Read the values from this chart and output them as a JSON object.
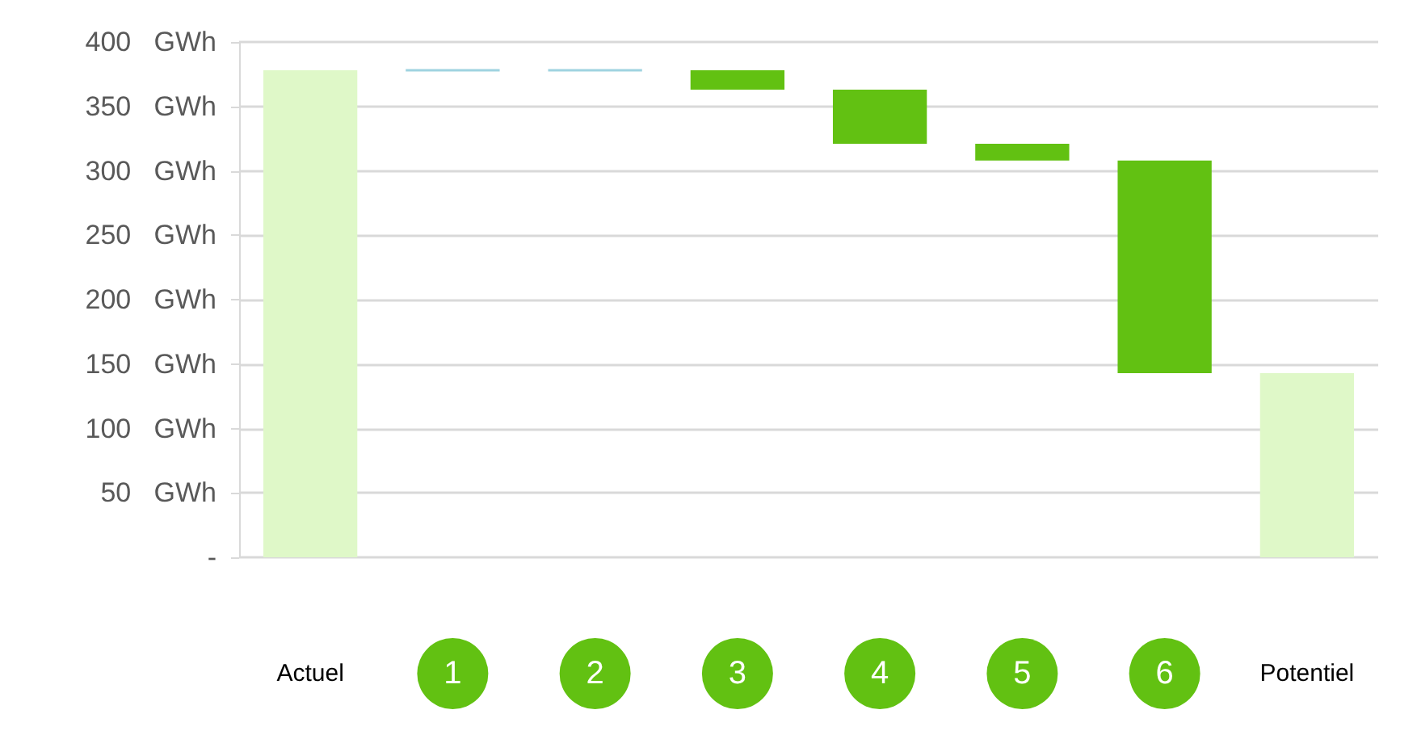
{
  "chart_data": {
    "type": "bar",
    "categories": [
      "Actuel",
      "1",
      "2",
      "3",
      "4",
      "5",
      "6",
      "Potentiel"
    ],
    "base": [
      0,
      378,
      378,
      378,
      363,
      321,
      308,
      0
    ],
    "values": [
      378,
      0,
      0,
      -15,
      -42,
      -13,
      -165,
      143
    ],
    "colors": [
      "#dff8c8",
      "#9fd3e0",
      "#9fd3e0",
      "#62c112",
      "#62c112",
      "#62c112",
      "#62c112",
      "#dff8c8"
    ],
    "ylim": [
      0,
      400
    ],
    "yticks": [
      {
        "value": 0,
        "label": "-"
      },
      {
        "value": 50,
        "label": "50   GWh"
      },
      {
        "value": 100,
        "label": "100   GWh"
      },
      {
        "value": 150,
        "label": "150   GWh"
      },
      {
        "value": 200,
        "label": "200   GWh"
      },
      {
        "value": 250,
        "label": "250   GWh"
      },
      {
        "value": 300,
        "label": "300   GWh"
      },
      {
        "value": 350,
        "label": "350   GWh"
      },
      {
        "value": 400,
        "label": "400   GWh"
      }
    ],
    "grid": "y"
  }
}
